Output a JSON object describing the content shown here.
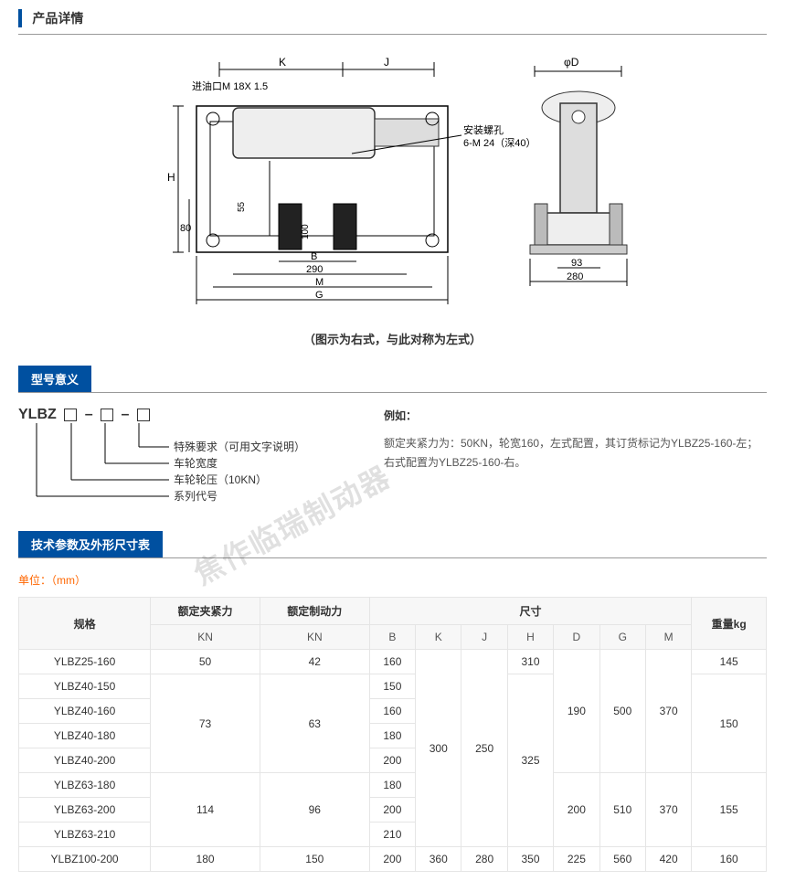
{
  "sections": {
    "detail_title": "产品详情",
    "model_title": "型号意义",
    "spec_title": "技术参数及外形尺寸表"
  },
  "drawing": {
    "oil_inlet": "进油口M 18X 1.5",
    "mount_hole": "安装螺孔",
    "mount_spec": "6-M 24（深40）",
    "dims": {
      "K": "K",
      "J": "J",
      "H": "H",
      "B": "B",
      "M": "M",
      "G": "G",
      "phiD": "φD"
    },
    "nums": {
      "d80": "80",
      "d55": "55",
      "d55b": "55",
      "d100": "100",
      "d290": "290",
      "d93": "93",
      "d280": "280"
    },
    "caption": "（图示为右式，与此对称为左式）"
  },
  "model": {
    "code": "YLBZ",
    "dash": "–",
    "desc": [
      "特殊要求（可用文字说明）",
      "车轮宽度",
      "车轮轮压（10KN）",
      "系列代号"
    ],
    "example_label": "例如：",
    "example_text": "额定夹紧力为：50KN，轮宽160，左式配置，其订货标记为YLBZ25-160-左；右式配置为YLBZ25-160-右。"
  },
  "units_label": "单位：（mm）",
  "watermark": "焦作临瑞制动器",
  "table": {
    "headers": {
      "spec": "规格",
      "clamp": "额定夹紧力",
      "clamp_unit": "KN",
      "brake": "额定制动力",
      "brake_unit": "KN",
      "size": "尺寸",
      "B": "B",
      "K": "K",
      "J": "J",
      "H": "H",
      "D": "D",
      "G": "G",
      "M": "M",
      "weight": "重量kg"
    },
    "rows": [
      {
        "spec": "YLBZ25-160",
        "clamp": "50",
        "brake": "42",
        "B": "160",
        "K": "",
        "J": "",
        "H": "310",
        "D": "",
        "G": "",
        "M": "",
        "weight": "145"
      },
      {
        "spec": "YLBZ40-150",
        "clamp": "",
        "brake": "",
        "B": "150",
        "K": "",
        "J": "",
        "H": "",
        "D": "",
        "G": "",
        "M": "",
        "weight": ""
      },
      {
        "spec": "YLBZ40-160",
        "clamp": "73",
        "brake": "63",
        "B": "160",
        "K": "",
        "J": "",
        "H": "",
        "D": "190",
        "G": "500",
        "M": "370",
        "weight": "150"
      },
      {
        "spec": "YLBZ40-180",
        "clamp": "",
        "brake": "",
        "B": "180",
        "K": "300",
        "J": "250",
        "H": "325",
        "D": "",
        "G": "",
        "M": "",
        "weight": ""
      },
      {
        "spec": "YLBZ40-200",
        "clamp": "",
        "brake": "",
        "B": "200",
        "K": "",
        "J": "",
        "H": "",
        "D": "",
        "G": "",
        "M": "",
        "weight": ""
      },
      {
        "spec": "YLBZ63-180",
        "clamp": "",
        "brake": "",
        "B": "180",
        "K": "",
        "J": "",
        "H": "",
        "D": "",
        "G": "",
        "M": "",
        "weight": ""
      },
      {
        "spec": "YLBZ63-200",
        "clamp": "114",
        "brake": "96",
        "B": "200",
        "K": "",
        "J": "",
        "H": "",
        "D": "200",
        "G": "510",
        "M": "370",
        "weight": "155"
      },
      {
        "spec": "YLBZ63-210",
        "clamp": "",
        "brake": "",
        "B": "210",
        "K": "",
        "J": "",
        "H": "",
        "D": "",
        "G": "",
        "M": "",
        "weight": ""
      },
      {
        "spec": "YLBZ100-200",
        "clamp": "180",
        "brake": "150",
        "B": "200",
        "K": "360",
        "J": "280",
        "H": "350",
        "D": "225",
        "G": "560",
        "M": "420",
        "weight": "160"
      }
    ],
    "col_widths": [
      "110",
      "70",
      "70",
      "60",
      "60",
      "60",
      "60",
      "60",
      "60",
      "60",
      "70"
    ],
    "merge": {
      "clamp": [
        {
          "start": 1,
          "span": 4
        },
        {
          "start": 5,
          "span": 3
        }
      ],
      "brake": [
        {
          "start": 1,
          "span": 4
        },
        {
          "start": 5,
          "span": 3
        }
      ],
      "K": [
        {
          "start": 0,
          "span": 8
        }
      ],
      "J": [
        {
          "start": 0,
          "span": 8
        }
      ],
      "H": [
        {
          "start": 1,
          "span": 7
        }
      ],
      "D": [
        {
          "start": 0,
          "span": 5
        },
        {
          "start": 5,
          "span": 3
        }
      ],
      "G": [
        {
          "start": 0,
          "span": 5
        },
        {
          "start": 5,
          "span": 3
        }
      ],
      "M": [
        {
          "start": 0,
          "span": 5
        },
        {
          "start": 5,
          "span": 3
        }
      ],
      "weight": [
        {
          "start": 1,
          "span": 4
        },
        {
          "start": 5,
          "span": 3
        }
      ]
    }
  },
  "colors": {
    "primary": "#0050a0",
    "border": "#e5e5e5",
    "orange": "#ff6600",
    "header_bg": "#f7f7f7"
  }
}
